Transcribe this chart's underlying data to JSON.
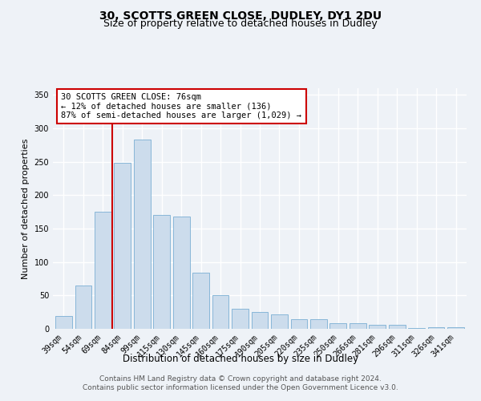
{
  "title1": "30, SCOTTS GREEN CLOSE, DUDLEY, DY1 2DU",
  "title2": "Size of property relative to detached houses in Dudley",
  "xlabel": "Distribution of detached houses by size in Dudley",
  "ylabel": "Number of detached properties",
  "categories": [
    "39sqm",
    "54sqm",
    "69sqm",
    "84sqm",
    "99sqm",
    "115sqm",
    "130sqm",
    "145sqm",
    "160sqm",
    "175sqm",
    "190sqm",
    "205sqm",
    "220sqm",
    "235sqm",
    "250sqm",
    "266sqm",
    "281sqm",
    "296sqm",
    "311sqm",
    "326sqm",
    "341sqm"
  ],
  "values": [
    19,
    65,
    175,
    249,
    283,
    170,
    168,
    84,
    50,
    30,
    25,
    22,
    15,
    15,
    9,
    8,
    6,
    6,
    1,
    3,
    3
  ],
  "bar_color": "#ccdcec",
  "bar_edge_color": "#7aafd4",
  "vline_x": 2.47,
  "vline_color": "#cc0000",
  "annotation_text": "30 SCOTTS GREEN CLOSE: 76sqm\n← 12% of detached houses are smaller (136)\n87% of semi-detached houses are larger (1,029) →",
  "annotation_box_color": "#ffffff",
  "annotation_box_edge_color": "#cc0000",
  "ylim": [
    0,
    360
  ],
  "yticks": [
    0,
    50,
    100,
    150,
    200,
    250,
    300,
    350
  ],
  "footer": "Contains HM Land Registry data © Crown copyright and database right 2024.\nContains public sector information licensed under the Open Government Licence v3.0.",
  "background_color": "#eef2f7",
  "plot_bg_color": "#eef2f7",
  "grid_color": "#ffffff",
  "title1_fontsize": 10,
  "title2_fontsize": 9,
  "xlabel_fontsize": 8.5,
  "ylabel_fontsize": 8,
  "tick_fontsize": 7,
  "annotation_fontsize": 7.5,
  "footer_fontsize": 6.5
}
